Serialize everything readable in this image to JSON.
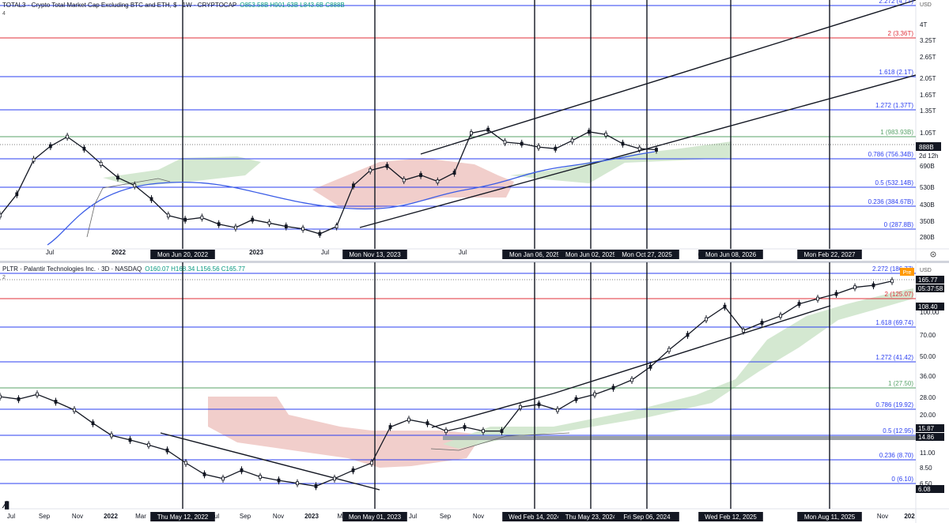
{
  "panels": {
    "top": {
      "header": "TOTAL3 · Crypto Total Market Cap Excluding BTC and ETH, $ · 1W · CRYPTOCAP",
      "ohlc": "O853.58B H901.63B L843.6B C888B",
      "pane_label": "4",
      "currency": "USD"
    },
    "bottom": {
      "header": "PLTR · Palantir Technologies Inc. · 3D · NASDAQ",
      "ohlc": "O160.07 H168.34 L156.56 C165.77",
      "pane_label": "2",
      "currency": "USD"
    }
  },
  "colors": {
    "fib_blue": "#2b3ff0",
    "fib_red": "#e0303a",
    "fib_green": "#5aa36a",
    "cloud_red": "#f0c9c5",
    "cloud_green": "#cfe6cc",
    "ma_blue": "#3a5ce6",
    "price_label": "#131722",
    "pre_badge": "#ff9800"
  },
  "chart_data": [
    {
      "type": "line",
      "title": "TOTAL3 · Crypto Total Market Cap Excluding BTC and ETH, $ · 1W · CRYPTOCAP",
      "scale": "log",
      "y_ticks": [
        "4T",
        "3.25T",
        "2.65T",
        "2.05T",
        "1.65T",
        "1.35T",
        "1.05T",
        "690B",
        "530B",
        "430B",
        "350B",
        "280B"
      ],
      "fib_levels": [
        {
          "label": "2.272 (4.7T)",
          "color": "blue"
        },
        {
          "label": "2 (3.36T)",
          "color": "red"
        },
        {
          "label": "1.618 (2.1T)",
          "color": "blue"
        },
        {
          "label": "1.272 (1.37T)",
          "color": "blue"
        },
        {
          "label": "1 (983.93B)",
          "color": "green"
        },
        {
          "label": "0.786 (756.34B)",
          "color": "blue"
        },
        {
          "label": "0.5 (532.14B)",
          "color": "blue"
        },
        {
          "label": "0.236 (384.67B)",
          "color": "blue"
        },
        {
          "label": "0 (287.8B)",
          "color": "blue"
        }
      ],
      "last_value": "888B",
      "countdown": "2d 12h",
      "x_ticks": [
        "Jul",
        "2022",
        "2023",
        "Jul",
        "Jul"
      ],
      "date_markers": [
        "Mon Jun 20, 2022",
        "Mon Nov 13, 2023",
        "Mon Jan 06, 2025",
        "Mon Jun 02, 2025",
        "Mon Oct 27, 2025",
        "Mon Jun 08, 2026",
        "Mon Feb 22, 2027"
      ],
      "cut_label": "6",
      "series": [
        {
          "values": [
            380,
            500,
            780,
            930,
            1050,
            900,
            740,
            620,
            560,
            470,
            380,
            360,
            370,
            340,
            325,
            360,
            345,
            330,
            320,
            300,
            330,
            560,
            680,
            720,
            600,
            640,
            590,
            660,
            1100,
            1150,
            980,
            960,
            920,
            900,
            1000,
            1120,
            1080,
            960,
            900,
            888
          ]
        }
      ]
    },
    {
      "type": "line",
      "title": "PLTR · Palantir Technologies Inc. · 3D · NASDAQ",
      "scale": "log",
      "y_ticks": [
        "100.00",
        "70.00",
        "50.00",
        "36.00",
        "28.00",
        "20.00",
        "11.00",
        "8.50",
        "6.50"
      ],
      "fib_levels": [
        {
          "label": "2.272 (186.77)",
          "color": "blue"
        },
        {
          "label": "2 (125.07)",
          "color": "red"
        },
        {
          "label": "1.618 (69.74)",
          "color": "blue"
        },
        {
          "label": "1.272 (41.42)",
          "color": "blue"
        },
        {
          "label": "1 (27.50)",
          "color": "green"
        },
        {
          "label": "0.786 (19.92)",
          "color": "blue"
        },
        {
          "label": "0.5 (12.95)",
          "color": "blue"
        },
        {
          "label": "0.236 (8.70)",
          "color": "blue"
        },
        {
          "label": "0 (6.10)",
          "color": "blue"
        }
      ],
      "price_labels": [
        "165.77",
        "05:37:58",
        "108.40",
        "15.87",
        "14.86",
        "6.08"
      ],
      "badge": "Pre",
      "x_ticks": [
        "Jul",
        "Sep",
        "Nov",
        "2022",
        "Mar",
        "Jul",
        "Sep",
        "Nov",
        "2023",
        "Ma",
        "Jul",
        "Sep",
        "Nov",
        "Jul",
        "Nov",
        "202"
      ],
      "date_markers": [
        "Thu May 12, 2022",
        "Mon May 01, 2023",
        "Wed Feb 14, 2024",
        "Thu May 23, 2024",
        "Fri Sep 06, 2024",
        "Wed Feb 12, 2025",
        "Mon Aug 11, 2025"
      ],
      "series": [
        {
          "values": [
            26,
            25,
            27,
            24,
            21,
            17,
            14,
            13,
            12,
            11,
            9,
            7.5,
            7,
            8,
            7.2,
            6.8,
            6.5,
            6.2,
            7,
            8,
            9,
            16,
            18,
            17,
            15,
            16,
            15,
            15,
            22,
            23,
            21,
            25,
            27,
            30,
            34,
            42,
            55,
            70,
            90,
            110,
            75,
            85,
            95,
            115,
            125,
            135,
            150,
            155,
            165.77
          ]
        }
      ]
    }
  ]
}
